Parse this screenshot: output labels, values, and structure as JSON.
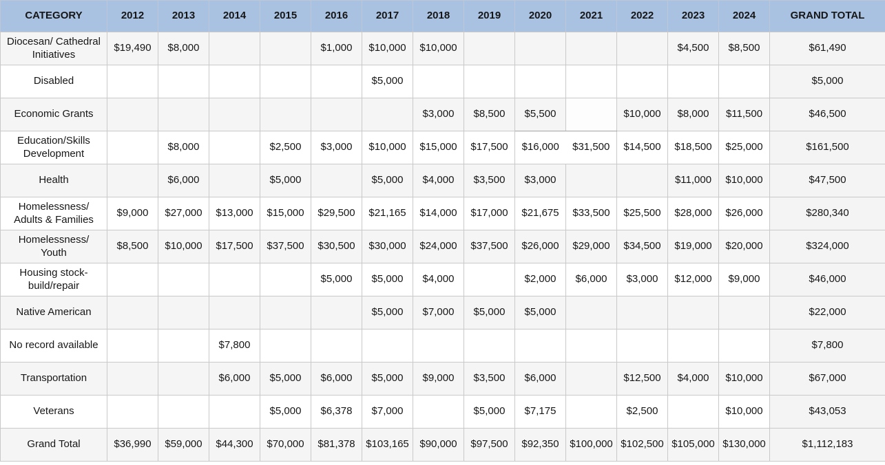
{
  "table": {
    "header": {
      "category_label": "CATEGORY",
      "year_labels": [
        "2012",
        "2013",
        "2014",
        "2015",
        "2016",
        "2017",
        "2018",
        "2019",
        "2020",
        "2021",
        "2022",
        "2023",
        "2024"
      ],
      "grand_total_label": "GRAND TOTAL"
    },
    "rows": [
      {
        "category": "Diocesan/ Cathedral\nInitiatives",
        "values": [
          "$19,490",
          "$8,000",
          "",
          "",
          "$1,000",
          "$10,000",
          "$10,000",
          "",
          "",
          "",
          "",
          "$4,500",
          "$8,500"
        ],
        "grand_total": "$61,490"
      },
      {
        "category": "Disabled",
        "values": [
          "",
          "",
          "",
          "",
          "",
          "$5,000",
          "",
          "",
          "",
          "",
          "",
          "",
          ""
        ],
        "grand_total": "$5,000"
      },
      {
        "category": "Economic Grants",
        "values": [
          "",
          "",
          "",
          "",
          "",
          "",
          "$3,000",
          "$8,500",
          "$5,500",
          "",
          "$10,000",
          "$8,000",
          "$11,500"
        ],
        "grand_total": "$46,500"
      },
      {
        "category": "Education/Skills\nDevelopment",
        "values": [
          "",
          "$8,000",
          "",
          "$2,500",
          "$3,000",
          "$10,000",
          "$15,000",
          "$17,500",
          "$16,000",
          "$31,500",
          "$14,500",
          "$18,500",
          "$25,000"
        ],
        "grand_total": "$161,500"
      },
      {
        "category": "Health",
        "values": [
          "",
          "$6,000",
          "",
          "$5,000",
          "",
          "$5,000",
          "$4,000",
          "$3,500",
          "$3,000",
          "",
          "",
          "$11,000",
          "$10,000"
        ],
        "grand_total": "$47,500"
      },
      {
        "category": "Homelessness/\nAdults & Families",
        "values": [
          "$9,000",
          "$27,000",
          "$13,000",
          "$15,000",
          "$29,500",
          "$21,165",
          "$14,000",
          "$17,000",
          "$21,675",
          "$33,500",
          "$25,500",
          "$28,000",
          "$26,000"
        ],
        "grand_total": "$280,340"
      },
      {
        "category": "Homelessness/\nYouth",
        "values": [
          "$8,500",
          "$10,000",
          "$17,500",
          "$37,500",
          "$30,500",
          "$30,000",
          "$24,000",
          "$37,500",
          "$26,000",
          "$29,000",
          "$34,500",
          "$19,000",
          "$20,000"
        ],
        "grand_total": "$324,000"
      },
      {
        "category": "Housing stock-\nbuild/repair",
        "values": [
          "",
          "",
          "",
          "",
          "$5,000",
          "$5,000",
          "$4,000",
          "",
          "$2,000",
          "$6,000",
          "$3,000",
          "$12,000",
          "$9,000"
        ],
        "grand_total": "$46,000"
      },
      {
        "category": "Native American",
        "values": [
          "",
          "",
          "",
          "",
          "",
          "$5,000",
          "$7,000",
          "$5,000",
          "$5,000",
          "",
          "",
          "",
          ""
        ],
        "grand_total": "$22,000"
      },
      {
        "category": "No record available",
        "values": [
          "",
          "",
          "$7,800",
          "",
          "",
          "",
          "",
          "",
          "",
          "",
          "",
          "",
          ""
        ],
        "grand_total": "$7,800"
      },
      {
        "category": "Transportation",
        "values": [
          "",
          "",
          "$6,000",
          "$5,000",
          "$6,000",
          "$5,000",
          "$9,000",
          "$3,500",
          "$6,000",
          "",
          "$12,500",
          "$4,000",
          "$10,000"
        ],
        "grand_total": "$67,000"
      },
      {
        "category": "Veterans",
        "values": [
          "",
          "",
          "",
          "$5,000",
          "$6,378",
          "$7,000",
          "",
          "$5,000",
          "$7,175",
          "",
          "$2,500",
          "",
          "$10,000"
        ],
        "grand_total": "$43,053"
      },
      {
        "category": "Grand Total",
        "values": [
          "$36,990",
          "$59,000",
          "$44,300",
          "$70,000",
          "$81,378",
          "$103,165",
          "$90,000",
          "$97,500",
          "$92,350",
          "$100,000",
          "$102,500",
          "$105,000",
          "$130,000"
        ],
        "grand_total": "$1,112,183"
      }
    ]
  },
  "colors": {
    "header_bg": "#a9c2e2",
    "header_border": "#bcc8da",
    "stripe_bg": "#f5f5f5",
    "row_bg": "#ffffff",
    "total_col_bg": "#f4f4f4",
    "border": "#c9c9c9",
    "text": "#161616"
  },
  "chart_data": {
    "type": "table",
    "columns": [
      "CATEGORY",
      "2012",
      "2013",
      "2014",
      "2015",
      "2016",
      "2017",
      "2018",
      "2019",
      "2020",
      "2021",
      "2022",
      "2023",
      "2024",
      "GRAND TOTAL"
    ],
    "rows": [
      {
        "category": "Diocesan/ Cathedral Initiatives",
        "values": [
          19490,
          8000,
          null,
          null,
          1000,
          10000,
          10000,
          null,
          null,
          null,
          null,
          4500,
          8500
        ],
        "total": 61490
      },
      {
        "category": "Disabled",
        "values": [
          null,
          null,
          null,
          null,
          null,
          5000,
          null,
          null,
          null,
          null,
          null,
          null,
          null
        ],
        "total": 5000
      },
      {
        "category": "Economic Grants",
        "values": [
          null,
          null,
          null,
          null,
          null,
          null,
          3000,
          8500,
          5500,
          null,
          10000,
          8000,
          11500
        ],
        "total": 46500
      },
      {
        "category": "Education/Skills Development",
        "values": [
          null,
          8000,
          null,
          2500,
          3000,
          10000,
          15000,
          17500,
          16000,
          31500,
          14500,
          18500,
          25000
        ],
        "total": 161500
      },
      {
        "category": "Health",
        "values": [
          null,
          6000,
          null,
          5000,
          null,
          5000,
          4000,
          3500,
          3000,
          null,
          null,
          11000,
          10000
        ],
        "total": 47500
      },
      {
        "category": "Homelessness/ Adults & Families",
        "values": [
          9000,
          27000,
          13000,
          15000,
          29500,
          21165,
          14000,
          17000,
          21675,
          33500,
          25500,
          28000,
          26000
        ],
        "total": 280340
      },
      {
        "category": "Homelessness/ Youth",
        "values": [
          8500,
          10000,
          17500,
          37500,
          30500,
          30000,
          24000,
          37500,
          26000,
          29000,
          34500,
          19000,
          20000
        ],
        "total": 324000
      },
      {
        "category": "Housing stock-build/repair",
        "values": [
          null,
          null,
          null,
          null,
          5000,
          5000,
          4000,
          null,
          2000,
          6000,
          3000,
          12000,
          9000
        ],
        "total": 46000
      },
      {
        "category": "Native American",
        "values": [
          null,
          null,
          null,
          null,
          null,
          5000,
          7000,
          5000,
          5000,
          null,
          null,
          null,
          null
        ],
        "total": 22000
      },
      {
        "category": "No record available",
        "values": [
          null,
          null,
          7800,
          null,
          null,
          null,
          null,
          null,
          null,
          null,
          null,
          null,
          null
        ],
        "total": 7800
      },
      {
        "category": "Transportation",
        "values": [
          null,
          null,
          6000,
          5000,
          6000,
          5000,
          9000,
          3500,
          6000,
          null,
          12500,
          4000,
          10000
        ],
        "total": 67000
      },
      {
        "category": "Veterans",
        "values": [
          null,
          null,
          null,
          5000,
          6378,
          7000,
          null,
          5000,
          7175,
          null,
          2500,
          null,
          10000
        ],
        "total": 43053
      }
    ],
    "grand_total_row": {
      "category": "Grand Total",
      "values": [
        36990,
        59000,
        44300,
        70000,
        81378,
        103165,
        90000,
        97500,
        92350,
        100000,
        102500,
        105000,
        130000
      ],
      "total": 1112183
    }
  }
}
